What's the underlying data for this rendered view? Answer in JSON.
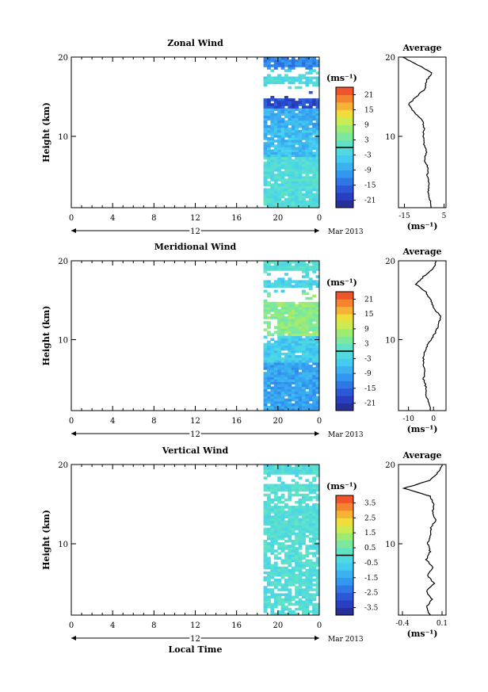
{
  "chart_data": [
    {
      "type": "heatmap",
      "title": "Zonal Wind",
      "ylabel": "Height (km)",
      "y_ticks": [
        "20",
        "10"
      ],
      "x_ticks": [
        "0",
        "4",
        "8",
        "12",
        "16",
        "20",
        "0"
      ],
      "xlim": [
        0,
        24
      ],
      "ylim": [
        1,
        20
      ],
      "day_label": "12",
      "date_label": "Mar 2013",
      "colorbar": {
        "unit": "(ms⁻¹)",
        "ticks": [
          "21",
          "15",
          "9",
          "3",
          "-3",
          "-9",
          "-15",
          "-21"
        ],
        "range": [
          -24,
          24
        ]
      },
      "data_extent": {
        "x_start": 18.6,
        "x_end": 24,
        "y_start": 1,
        "y_end": 20
      },
      "average": {
        "title": "Average",
        "xlabel": "(ms⁻¹)",
        "x_ticks": [
          "-15",
          "5"
        ],
        "y_ticks": [
          "20",
          "10"
        ],
        "xlim": [
          -18,
          6
        ],
        "profile": [
          [
            1,
            -1.5
          ],
          [
            2,
            -2
          ],
          [
            3,
            -3
          ],
          [
            4,
            -2.5
          ],
          [
            5,
            -3.5
          ],
          [
            6,
            -3
          ],
          [
            7,
            -5
          ],
          [
            8,
            -4
          ],
          [
            9,
            -5
          ],
          [
            10,
            -5.5
          ],
          [
            11,
            -5
          ],
          [
            12,
            -6
          ],
          [
            13,
            -10
          ],
          [
            14,
            -13
          ],
          [
            15,
            -9
          ],
          [
            16,
            -4.5
          ],
          [
            17,
            -4
          ],
          [
            18,
            -1
          ],
          [
            19,
            -8
          ],
          [
            20,
            -16
          ]
        ]
      }
    },
    {
      "type": "heatmap",
      "title": "Meridional Wind",
      "ylabel": "Height (km)",
      "y_ticks": [
        "20",
        "10"
      ],
      "x_ticks": [
        "0",
        "4",
        "8",
        "12",
        "16",
        "20",
        "0"
      ],
      "xlim": [
        0,
        24
      ],
      "ylim": [
        1,
        20
      ],
      "day_label": "12",
      "date_label": "Mar 2013",
      "colorbar": {
        "unit": "(ms⁻¹)",
        "ticks": [
          "21",
          "15",
          "9",
          "3",
          "-3",
          "-9",
          "-15",
          "-21"
        ],
        "range": [
          -24,
          24
        ]
      },
      "data_extent": {
        "x_start": 18.6,
        "x_end": 24,
        "y_start": 1,
        "y_end": 20
      },
      "average": {
        "title": "Average",
        "xlabel": "(ms⁻¹)",
        "x_ticks": [
          "-10",
          "0"
        ],
        "y_ticks": [
          "20",
          "10"
        ],
        "xlim": [
          -14,
          5
        ],
        "profile": [
          [
            1,
            -1
          ],
          [
            2,
            -2
          ],
          [
            3,
            -3
          ],
          [
            4,
            -3
          ],
          [
            5,
            -4
          ],
          [
            6,
            -3.5
          ],
          [
            7,
            -4
          ],
          [
            8,
            -4
          ],
          [
            9,
            -3
          ],
          [
            10,
            -1
          ],
          [
            11,
            1
          ],
          [
            12,
            2
          ],
          [
            13,
            3
          ],
          [
            14,
            0
          ],
          [
            15,
            -1
          ],
          [
            16,
            -3
          ],
          [
            17,
            -7
          ],
          [
            18,
            -4
          ],
          [
            19,
            0
          ],
          [
            20,
            1
          ]
        ]
      }
    },
    {
      "type": "heatmap",
      "title": "Vertical Wind",
      "ylabel": "Height (km)",
      "y_ticks": [
        "20",
        "10"
      ],
      "x_ticks": [
        "0",
        "4",
        "8",
        "12",
        "16",
        "20",
        "0"
      ],
      "xlim": [
        0,
        24
      ],
      "ylim": [
        1,
        20
      ],
      "day_label": "12",
      "date_label": "Mar 2013",
      "xlabel": "Local Time",
      "colorbar": {
        "unit": "(ms⁻¹)",
        "ticks": [
          "3.5",
          "2.5",
          "1.5",
          "0.5",
          "-0.5",
          "-1.5",
          "-2.5",
          "-3.5"
        ],
        "range": [
          -4,
          4
        ]
      },
      "data_extent": {
        "x_start": 18.6,
        "x_end": 24,
        "y_start": 1,
        "y_end": 20
      },
      "average": {
        "title": "Average",
        "xlabel": "(ms⁻¹)",
        "x_ticks": [
          "-0.4",
          "0.1"
        ],
        "y_ticks": [
          "20",
          "10"
        ],
        "xlim": [
          -0.45,
          0.15
        ],
        "profile": [
          [
            1,
            -0.05
          ],
          [
            2,
            -0.1
          ],
          [
            3,
            -0.02
          ],
          [
            4,
            -0.1
          ],
          [
            5,
            0.0
          ],
          [
            6,
            -0.08
          ],
          [
            7,
            -0.02
          ],
          [
            8,
            -0.1
          ],
          [
            9,
            -0.05
          ],
          [
            10,
            -0.08
          ],
          [
            11,
            -0.05
          ],
          [
            12,
            -0.04
          ],
          [
            13,
            0.02
          ],
          [
            14,
            -0.02
          ],
          [
            15,
            0.0
          ],
          [
            16,
            -0.05
          ],
          [
            17,
            -0.38
          ],
          [
            18,
            -0.05
          ],
          [
            19,
            0.05
          ],
          [
            20,
            0.1
          ]
        ]
      }
    }
  ]
}
